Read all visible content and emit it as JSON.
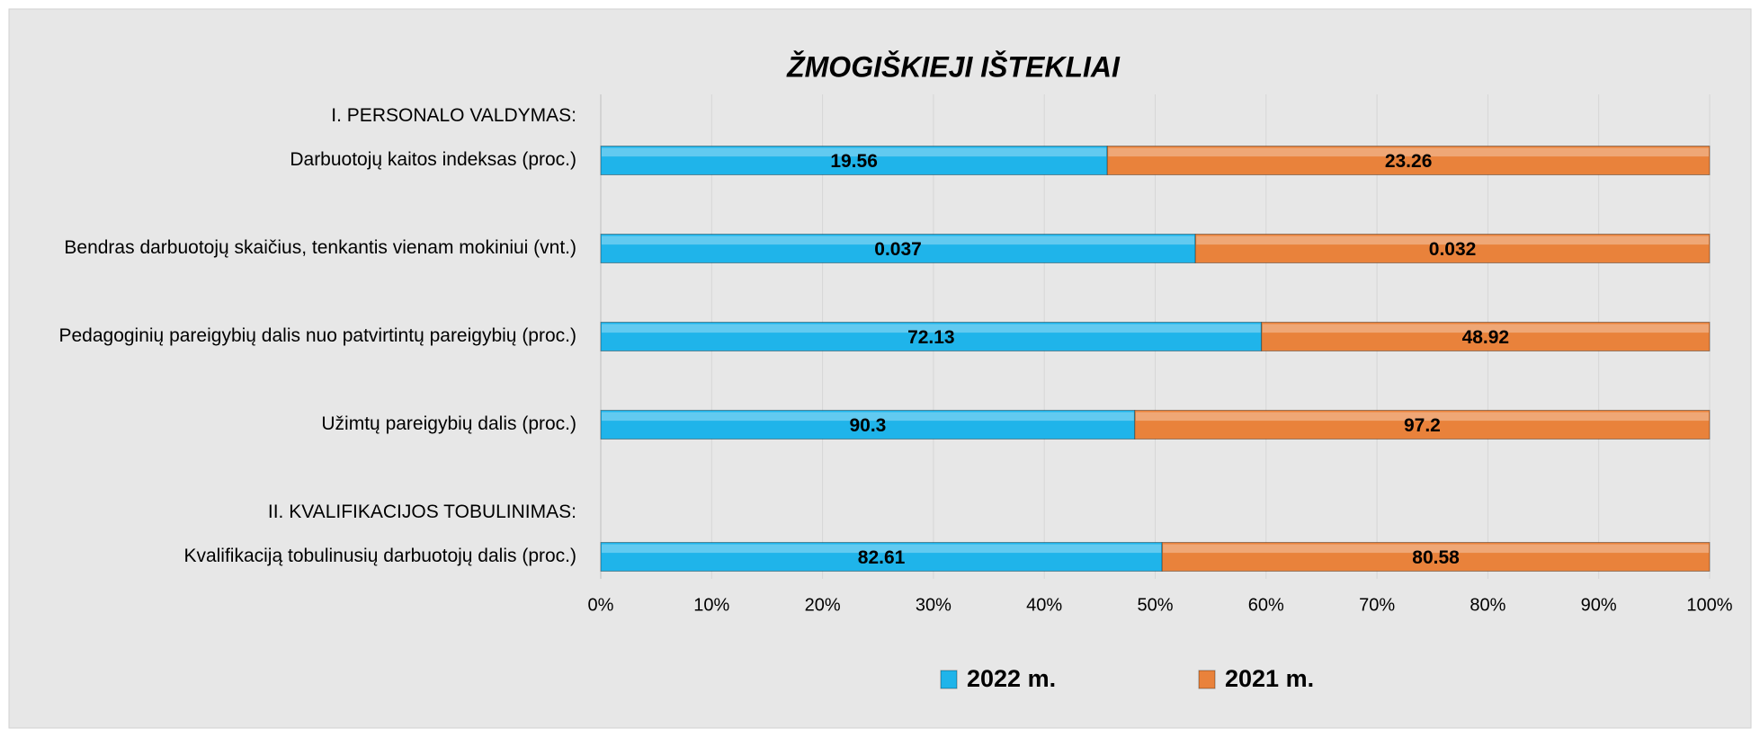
{
  "chart_data": {
    "type": "bar",
    "orientation": "horizontal",
    "stacking": "percent",
    "title": "ŽMOGIŠKIEJI IŠTEKLIAI",
    "categories": [
      "I. PERSONALO VALDYMAS:",
      "Darbuotojų kaitos indeksas (proc.)",
      null,
      "Bendras darbuotojų  skaičius, tenkantis vienam mokiniui (vnt.)",
      null,
      "Pedagoginių pareigybių dalis nuo  patvirtintų pareigybių (proc.)",
      null,
      "Užimtų pareigybių dalis (proc.)",
      null,
      "II. KVALIFIKACIJOS TOBULINIMAS:",
      "Kvalifikaciją tobulinusių darbuotojų dalis (proc.)"
    ],
    "series": [
      {
        "name": "2022 m.",
        "color": "#1fb4ea",
        "values": [
          null,
          19.56,
          null,
          0.037,
          null,
          72.13,
          null,
          90.3,
          null,
          null,
          82.61
        ]
      },
      {
        "name": "2021 m.",
        "color": "#e9823b",
        "values": [
          null,
          23.26,
          null,
          0.032,
          null,
          48.92,
          null,
          97.2,
          null,
          null,
          80.58
        ]
      }
    ],
    "xlim": [
      0,
      100
    ],
    "xticks": [
      {
        "value": 0,
        "label": "0%"
      },
      {
        "value": 10,
        "label": "10%"
      },
      {
        "value": 20,
        "label": "20%"
      },
      {
        "value": 30,
        "label": "30%"
      },
      {
        "value": 40,
        "label": "40%"
      },
      {
        "value": 50,
        "label": "50%"
      },
      {
        "value": 60,
        "label": "60%"
      },
      {
        "value": 70,
        "label": "70%"
      },
      {
        "value": 80,
        "label": "80%"
      },
      {
        "value": 90,
        "label": "90%"
      },
      {
        "value": 100,
        "label": "100%"
      }
    ],
    "grid": true,
    "legend": "bottom"
  }
}
